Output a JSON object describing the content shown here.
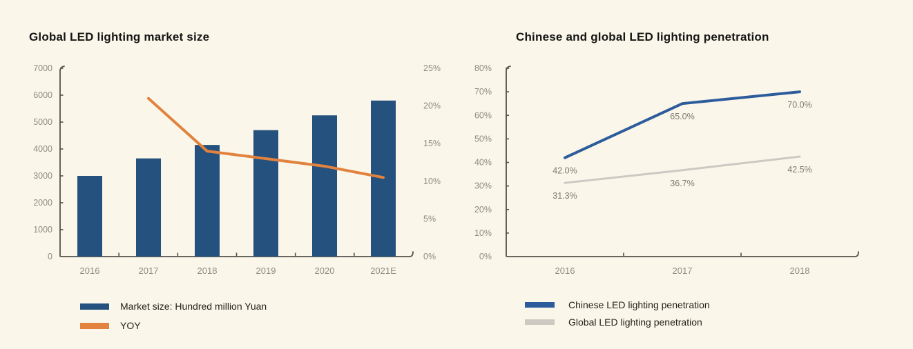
{
  "chart_data": [
    {
      "type": "bar",
      "title": "Global LED lighting market size",
      "categories": [
        "2016",
        "2017",
        "2018",
        "2019",
        "2020",
        "2021E"
      ],
      "series": [
        {
          "name": "Market size: Hundred million Yuan",
          "type": "bar",
          "axis": "left",
          "values": [
            3000,
            3650,
            4150,
            4700,
            5250,
            5800
          ],
          "color": "#24517E"
        },
        {
          "name": "YOY",
          "type": "line",
          "axis": "right",
          "values": [
            null,
            21,
            14,
            13,
            12,
            10.5
          ],
          "color": "#E1823E"
        }
      ],
      "left_axis": {
        "min": 0,
        "max": 7000,
        "step": 1000,
        "ticks": [
          "0",
          "1000",
          "2000",
          "3000",
          "4000",
          "5000",
          "6000",
          "7000"
        ]
      },
      "right_axis": {
        "min": 0,
        "max": 25,
        "step": 5,
        "format": "percent",
        "ticks": [
          "0%",
          "5%",
          "10%",
          "15%",
          "20%",
          "25%"
        ]
      },
      "legend_position": "bottom",
      "grid": "off"
    },
    {
      "type": "line",
      "title": "Chinese and global LED lighting penetration",
      "categories": [
        "2016",
        "2017",
        "2018"
      ],
      "series": [
        {
          "name": "Chinese LED lighting penetration",
          "values": [
            42.0,
            65.0,
            70.0
          ],
          "point_labels": [
            "42.0%",
            "65.0%",
            "70.0%"
          ],
          "color": "#2D5C9C"
        },
        {
          "name": "Global LED lighting penetration",
          "values": [
            31.3,
            36.7,
            42.5
          ],
          "point_labels": [
            "31.3%",
            "36.7%",
            "42.5%"
          ],
          "color": "#CBC9C2"
        }
      ],
      "y_axis": {
        "min": 0,
        "max": 80,
        "step": 10,
        "format": "percent",
        "ticks": [
          "0%",
          "10%",
          "20%",
          "30%",
          "40%",
          "50%",
          "60%",
          "70%",
          "80%"
        ]
      },
      "legend_position": "bottom",
      "grid": "off"
    }
  ],
  "style": {
    "background": "#FAF6E9",
    "axis_color": "#54524B",
    "tick_text_color": "#8F8C7F",
    "data_label_color": "#7D7A6E",
    "legend_text_color": "#24221C"
  }
}
